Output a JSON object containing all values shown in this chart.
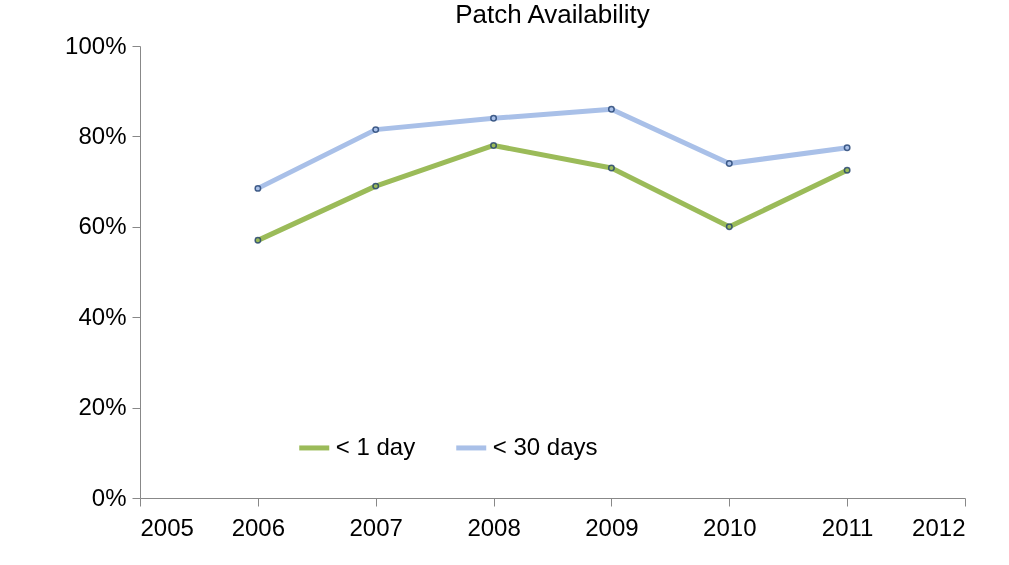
{
  "chart_data": {
    "type": "line",
    "title": "Patch Availability",
    "x": [
      2006,
      2007,
      2008,
      2009,
      2010,
      2011
    ],
    "series": [
      {
        "name": "< 1 day",
        "color": "#9bbb59",
        "values": [
          57,
          69,
          78,
          73,
          60,
          72.5
        ]
      },
      {
        "name": "< 30 days",
        "color": "#a9c0e8",
        "values": [
          68.5,
          81.5,
          84,
          86,
          74,
          77.5
        ]
      }
    ],
    "xlim": [
      2005,
      2012
    ],
    "xticks": [
      2005,
      2006,
      2007,
      2008,
      2009,
      2010,
      2011,
      2012
    ],
    "ylim": [
      0,
      100
    ],
    "yticks": [
      {
        "value": 0,
        "label": "0%"
      },
      {
        "value": 20,
        "label": "20%"
      },
      {
        "value": 40,
        "label": "40%"
      },
      {
        "value": 60,
        "label": "60%"
      },
      {
        "value": 80,
        "label": "80%"
      },
      {
        "value": 100,
        "label": "100%"
      }
    ],
    "grid": false,
    "legend": "bottom",
    "marker": "circle",
    "line_style": "solid"
  }
}
